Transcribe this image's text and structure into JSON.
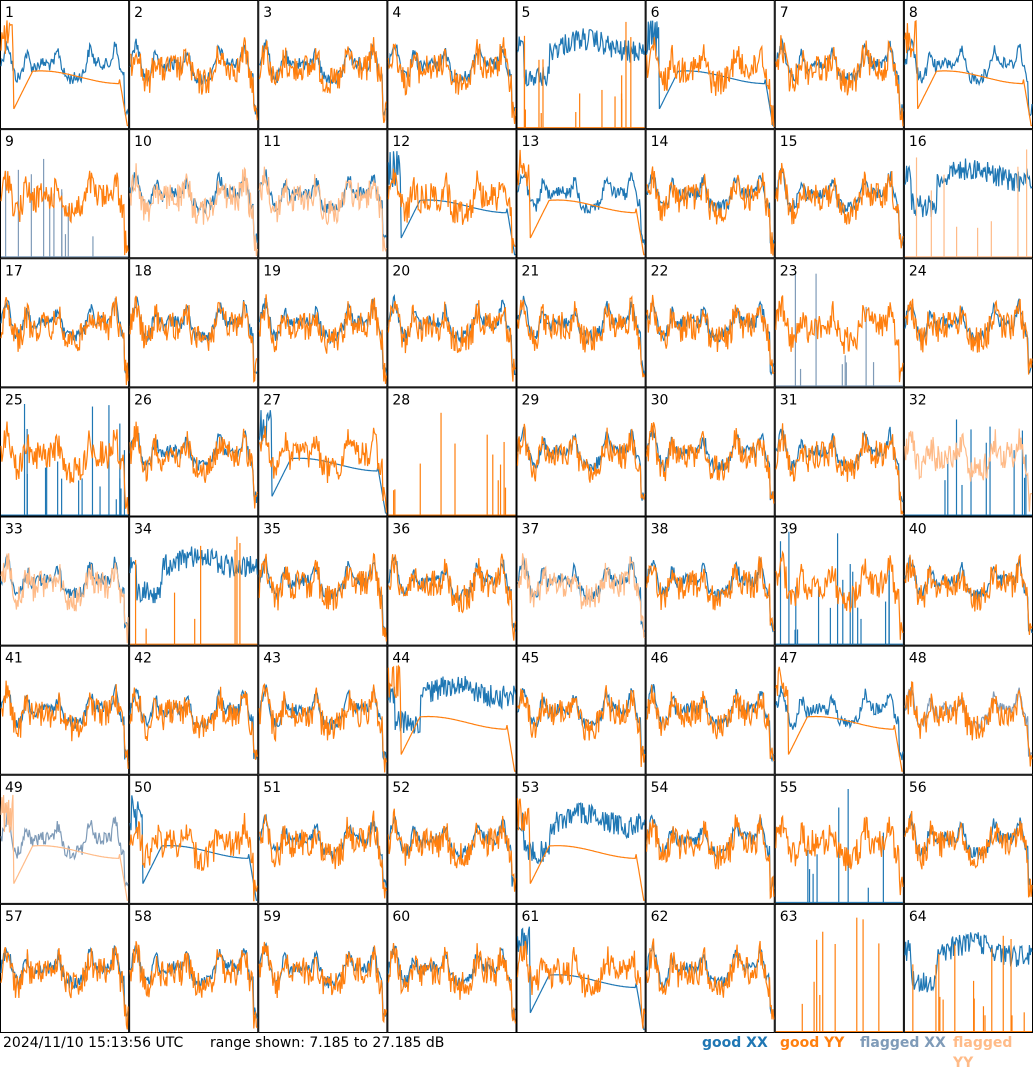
{
  "chart_data": {
    "type": "line",
    "layout": "8x8 small multiples",
    "range_text": "range shown: 7.185 to 27.185 dB",
    "ylim": [
      7.185,
      27.185
    ],
    "timestamp": "2024/11/10 15:13:56 UTC",
    "legend": [
      {
        "label": "good XX",
        "color": "#1f77b4"
      },
      {
        "label": "good YY",
        "color": "#ff7f0e"
      },
      {
        "label": "flagged XX",
        "color": "#7f9bb8"
      },
      {
        "label": "flagged YY",
        "color": "#ffbb88"
      }
    ],
    "panels": [
      {
        "id": "1",
        "xx": "wavy",
        "yy": "deep_drop",
        "flags": []
      },
      {
        "id": "2",
        "xx": "wavy",
        "yy": "wavy",
        "flags": []
      },
      {
        "id": "3",
        "xx": "wavy",
        "yy": "wavy",
        "flags": []
      },
      {
        "id": "4",
        "xx": "wavy",
        "yy": "wavy",
        "flags": []
      },
      {
        "id": "5",
        "xx": "noisy_high",
        "yy": "spikes",
        "flags": []
      },
      {
        "id": "6",
        "xx": "deep_drop",
        "yy": "wavy",
        "flags": []
      },
      {
        "id": "7",
        "xx": "wavy",
        "yy": "wavy",
        "flags": []
      },
      {
        "id": "8",
        "xx": "wavy",
        "yy": "deep_drop",
        "flags": []
      },
      {
        "id": "9",
        "xx": "spikes",
        "yy": "wavy",
        "flags": [
          "xx"
        ]
      },
      {
        "id": "10",
        "xx": "wavy",
        "yy": "wavy",
        "flags": [
          "yy"
        ]
      },
      {
        "id": "11",
        "xx": "wavy",
        "yy": "wavy",
        "flags": [
          "yy"
        ]
      },
      {
        "id": "12",
        "xx": "deep_drop",
        "yy": "wavy",
        "flags": []
      },
      {
        "id": "13",
        "xx": "wavy",
        "yy": "deep_drop",
        "flags": []
      },
      {
        "id": "14",
        "xx": "wavy",
        "yy": "wavy",
        "flags": []
      },
      {
        "id": "15",
        "xx": "wavy",
        "yy": "wavy",
        "flags": []
      },
      {
        "id": "16",
        "xx": "noisy_high",
        "yy": "spikes",
        "flags": [
          "yy"
        ]
      },
      {
        "id": "17",
        "xx": "wavy",
        "yy": "wavy",
        "flags": []
      },
      {
        "id": "18",
        "xx": "wavy",
        "yy": "wavy",
        "flags": []
      },
      {
        "id": "19",
        "xx": "wavy",
        "yy": "wavy",
        "flags": []
      },
      {
        "id": "20",
        "xx": "wavy",
        "yy": "wavy",
        "flags": []
      },
      {
        "id": "21",
        "xx": "wavy",
        "yy": "wavy",
        "flags": []
      },
      {
        "id": "22",
        "xx": "wavy",
        "yy": "wavy",
        "flags": []
      },
      {
        "id": "23",
        "xx": "spikes",
        "yy": "wavy",
        "flags": [
          "xx"
        ]
      },
      {
        "id": "24",
        "xx": "wavy",
        "yy": "wavy",
        "flags": []
      },
      {
        "id": "25",
        "xx": "spikes",
        "yy": "wavy",
        "flags": []
      },
      {
        "id": "26",
        "xx": "wavy",
        "yy": "wavy",
        "flags": []
      },
      {
        "id": "27",
        "xx": "deep_drop",
        "yy": "wavy",
        "flags": []
      },
      {
        "id": "28",
        "xx": "none",
        "yy": "spikes",
        "flags": []
      },
      {
        "id": "29",
        "xx": "wavy",
        "yy": "wavy",
        "flags": []
      },
      {
        "id": "30",
        "xx": "wavy",
        "yy": "wavy",
        "flags": []
      },
      {
        "id": "31",
        "xx": "wavy",
        "yy": "wavy",
        "flags": []
      },
      {
        "id": "32",
        "xx": "spikes",
        "yy": "wavy",
        "flags": [
          "yy"
        ]
      },
      {
        "id": "33",
        "xx": "wavy",
        "yy": "wavy",
        "flags": [
          "yy"
        ]
      },
      {
        "id": "34",
        "xx": "noisy_high",
        "yy": "spikes",
        "flags": []
      },
      {
        "id": "35",
        "xx": "wavy",
        "yy": "wavy",
        "flags": []
      },
      {
        "id": "36",
        "xx": "wavy",
        "yy": "wavy",
        "flags": []
      },
      {
        "id": "37",
        "xx": "wavy",
        "yy": "wavy",
        "flags": [
          "yy"
        ]
      },
      {
        "id": "38",
        "xx": "wavy",
        "yy": "wavy",
        "flags": []
      },
      {
        "id": "39",
        "xx": "spikes",
        "yy": "wavy",
        "flags": []
      },
      {
        "id": "40",
        "xx": "wavy",
        "yy": "wavy",
        "flags": []
      },
      {
        "id": "41",
        "xx": "wavy",
        "yy": "wavy",
        "flags": []
      },
      {
        "id": "42",
        "xx": "wavy",
        "yy": "wavy",
        "flags": []
      },
      {
        "id": "43",
        "xx": "wavy",
        "yy": "wavy",
        "flags": []
      },
      {
        "id": "44",
        "xx": "noisy_high",
        "yy": "deep_drop",
        "flags": []
      },
      {
        "id": "45",
        "xx": "wavy",
        "yy": "wavy",
        "flags": []
      },
      {
        "id": "46",
        "xx": "wavy",
        "yy": "wavy",
        "flags": []
      },
      {
        "id": "47",
        "xx": "wavy",
        "yy": "deep_drop",
        "flags": []
      },
      {
        "id": "48",
        "xx": "wavy",
        "yy": "wavy",
        "flags": [
          "xx"
        ]
      },
      {
        "id": "49",
        "xx": "wavy",
        "yy": "deep_drop",
        "flags": [
          "xx",
          "yy"
        ]
      },
      {
        "id": "50",
        "xx": "deep_drop",
        "yy": "wavy",
        "flags": []
      },
      {
        "id": "51",
        "xx": "wavy",
        "yy": "wavy",
        "flags": []
      },
      {
        "id": "52",
        "xx": "wavy",
        "yy": "wavy",
        "flags": []
      },
      {
        "id": "53",
        "xx": "noisy_high",
        "yy": "deep_drop",
        "flags": []
      },
      {
        "id": "54",
        "xx": "wavy",
        "yy": "wavy",
        "flags": []
      },
      {
        "id": "55",
        "xx": "spikes",
        "yy": "wavy",
        "flags": []
      },
      {
        "id": "56",
        "xx": "wavy",
        "yy": "wavy",
        "flags": []
      },
      {
        "id": "57",
        "xx": "wavy",
        "yy": "wavy",
        "flags": []
      },
      {
        "id": "58",
        "xx": "wavy",
        "yy": "wavy",
        "flags": []
      },
      {
        "id": "59",
        "xx": "wavy",
        "yy": "wavy",
        "flags": []
      },
      {
        "id": "60",
        "xx": "wavy",
        "yy": "wavy",
        "flags": []
      },
      {
        "id": "61",
        "xx": "deep_drop",
        "yy": "wavy",
        "flags": []
      },
      {
        "id": "62",
        "xx": "wavy",
        "yy": "wavy",
        "flags": []
      },
      {
        "id": "63",
        "xx": "none",
        "yy": "spikes",
        "flags": []
      },
      {
        "id": "64",
        "xx": "noisy_high",
        "yy": "spikes",
        "flags": []
      }
    ]
  }
}
